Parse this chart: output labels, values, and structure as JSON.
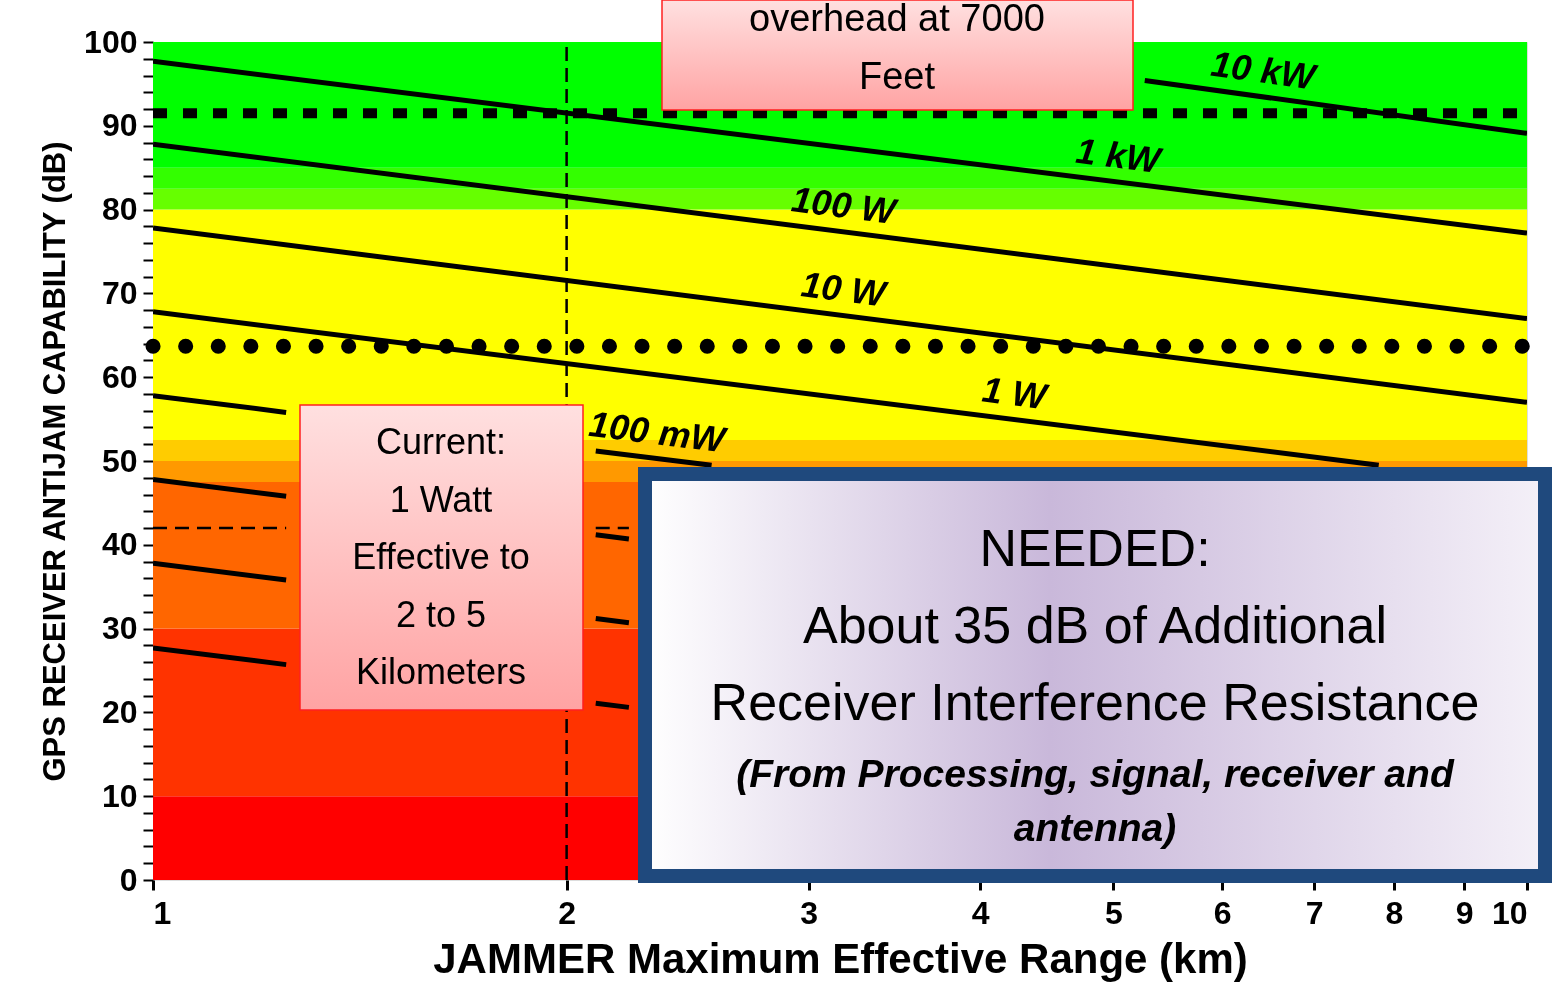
{
  "chart_data": {
    "type": "line",
    "xlabel": "JAMMER Maximum Effective Range (km)",
    "ylabel": "GPS RECEIVER ANTIJAM CAPABILITY (dB)",
    "log": "x",
    "grid": false,
    "xlim": [
      1,
      10
    ],
    "xticks": [
      1,
      2,
      3,
      4,
      5,
      6,
      7,
      8,
      9,
      10
    ],
    "ylim": [
      0,
      100
    ],
    "yticks": [
      0,
      {
        "value": 2,
        "label": null
      },
      {
        "value": 4,
        "label": null
      },
      {
        "value": 6,
        "label": null
      },
      {
        "value": 8,
        "label": null
      },
      10,
      {
        "value": 12,
        "label": null
      },
      {
        "value": 14,
        "label": null
      },
      {
        "value": 16,
        "label": null
      },
      {
        "value": 18,
        "label": null
      },
      20,
      {
        "value": 22,
        "label": null
      },
      {
        "value": 24,
        "label": null
      },
      {
        "value": 26,
        "label": null
      },
      {
        "value": 28,
        "label": null
      },
      30,
      {
        "value": 32,
        "label": null
      },
      {
        "value": 34,
        "label": null
      },
      {
        "value": 36,
        "label": null
      },
      {
        "value": 38,
        "label": null
      },
      40,
      {
        "value": 42,
        "label": null
      },
      {
        "value": 44,
        "label": null
      },
      {
        "value": 46,
        "label": null
      },
      {
        "value": 48,
        "label": null
      },
      50,
      {
        "value": 52,
        "label": null
      },
      {
        "value": 54,
        "label": null
      },
      {
        "value": 56,
        "label": null
      },
      {
        "value": 58,
        "label": null
      },
      60,
      {
        "value": 62,
        "label": null
      },
      {
        "value": 64,
        "label": null
      },
      {
        "value": 66,
        "label": null
      },
      {
        "value": 68,
        "label": null
      },
      70,
      {
        "value": 72,
        "label": null
      },
      {
        "value": 74,
        "label": null
      },
      {
        "value": 76,
        "label": null
      },
      {
        "value": 78,
        "label": null
      },
      80,
      {
        "value": 82,
        "label": null
      },
      {
        "value": 84,
        "label": null
      },
      {
        "value": 86,
        "label": null
      },
      {
        "value": 88,
        "label": null
      },
      90,
      {
        "value": 92,
        "label": null
      },
      {
        "value": 94,
        "label": null
      },
      {
        "value": 96,
        "label": null
      },
      {
        "value": 98,
        "label": null
      },
      100
    ],
    "bands": [
      {
        "axis": "y",
        "from": 0,
        "to": 10,
        "color": "#ff0000"
      },
      {
        "axis": "y",
        "from": 10,
        "to": 30,
        "color": "#ff3300"
      },
      {
        "axis": "y",
        "from": 30,
        "to": 47.5,
        "color": "#ff6600"
      },
      {
        "axis": "y",
        "from": 47.5,
        "to": 50,
        "color": "#ff9900"
      },
      {
        "axis": "y",
        "from": 50,
        "to": 52.5,
        "color": "#ffcc00"
      },
      {
        "axis": "y",
        "from": 52.5,
        "to": 80,
        "color": "#ffff00"
      },
      {
        "axis": "y",
        "from": 80,
        "to": 82.5,
        "color": "#66ff00"
      },
      {
        "axis": "y",
        "from": 82.5,
        "to": 85,
        "color": "#33ff00"
      },
      {
        "axis": "y",
        "from": 85,
        "to": 100,
        "color": "#00ff00"
      }
    ],
    "ref_lines": [
      {
        "axis": "y",
        "value": 91.5,
        "color": "#000000",
        "line_style": "dashed"
      },
      {
        "axis": "y",
        "value": 63.7,
        "color": "#000000",
        "line_style": "dotted"
      },
      {
        "axis": "x",
        "value": 2,
        "color": "#000000",
        "line_style": "dashed"
      }
    ],
    "series": [
      {
        "name": "10 kW",
        "color": "#000000",
        "x": [
          5.27,
          10
        ],
        "values": [
          95.4,
          89.1
        ]
      },
      {
        "name": "1 kW",
        "color": "#000000",
        "x": [
          1,
          10
        ],
        "values": [
          97.7,
          77.2
        ]
      },
      {
        "name": "100 W",
        "color": "#000000",
        "x": [
          1,
          10
        ],
        "values": [
          87.8,
          67.0
        ]
      },
      {
        "name": "10 W",
        "color": "#000000",
        "x": [
          1,
          10
        ],
        "values": [
          77.8,
          57.0
        ]
      },
      {
        "name": "1 W",
        "color": "#000000",
        "x": [
          1,
          7.8
        ],
        "values": [
          67.8,
          49.5
        ]
      },
      {
        "name": "100 mW",
        "color": "#000000",
        "x": [
          1,
          1.25,
          1.6,
          2.1,
          2.55
        ],
        "values": [
          57.8,
          55.8,
          null,
          51.2,
          49.5
        ]
      },
      {
        "color": "#000000",
        "x": [
          1,
          1.25,
          1.6,
          2.1,
          2.22
        ],
        "values": [
          47.8,
          45.8,
          null,
          41.2,
          40.7
        ]
      },
      {
        "color": "#000000",
        "x": [
          1,
          1.25,
          1.6,
          2.1,
          2.22
        ],
        "values": [
          37.8,
          35.8,
          null,
          31.2,
          30.7
        ]
      },
      {
        "color": "#000000",
        "x": [
          1,
          1.25,
          1.6,
          2.1,
          2.22
        ],
        "values": [
          27.7,
          25.7,
          null,
          21.1,
          20.6
        ]
      },
      {
        "color": "#000000",
        "line_style": "dashed",
        "x": [
          1,
          1.25,
          1.6,
          2.1,
          2.22
        ],
        "values": [
          42,
          42,
          null,
          42,
          42
        ]
      }
    ],
    "annotations": [
      "overhead at 7000\nFeet",
      "Current:\n1 Watt\nEffective to\n2 to 5\nKilometers",
      "NEEDED:\nAbout 35 dB of Additional\nReceiver Interference Resistance",
      "(From Processing, signal, receiver and\nantenna)"
    ]
  }
}
